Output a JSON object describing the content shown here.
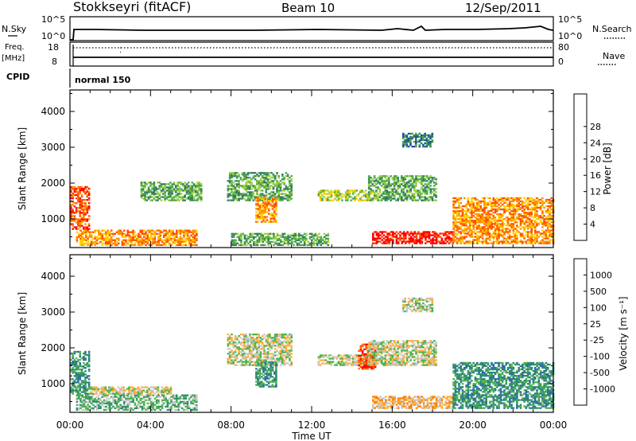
{
  "header": {
    "station": "Stokkseyri (fitACF)",
    "beam": "Beam 10",
    "date": "12/Sep/2011"
  },
  "strip_panels": {
    "nsky_label": "N.Sky",
    "nsearch_label": "N.Search",
    "freq_label_1": "Freq.",
    "freq_label_2": "[MHz]",
    "nave_label": "Nave",
    "cpid_label": "CPID",
    "left_ticks_top": [
      "10^5",
      "10^0"
    ],
    "right_ticks_top": [
      "10^5",
      "10^0"
    ],
    "left_ticks_freq": [
      "18",
      "8"
    ],
    "right_ticks_nave": [
      "80",
      "0"
    ],
    "cpid_text": "normal 150"
  },
  "colors": {
    "frame": "#000000",
    "ground_scatter": "#c8c8c8"
  },
  "chart_data": [
    {
      "type": "heatmap",
      "name": "power",
      "ylabel": "Slant Range [km]",
      "xlabel": "Time UT",
      "x_ticks": [
        "00:00",
        "04:00",
        "08:00",
        "12:00",
        "16:00",
        "20:00",
        "00:00"
      ],
      "y_ticks": [
        "1000",
        "2000",
        "3000",
        "4000"
      ],
      "ylim": [
        200,
        4600
      ],
      "xlim_hours": [
        0,
        24
      ],
      "colorbar_label": "Power [dB]",
      "colorbar_ticks": [
        "4",
        "8",
        "12",
        "16",
        "20",
        "24",
        "28"
      ],
      "colorbar_colors": [
        "#0000ff",
        "#1f4fa8",
        "#2f7f5f",
        "#4fa84f",
        "#9fcf3f",
        "#ffd000",
        "#ff9000",
        "#ff5000",
        "#ff0000"
      ],
      "regions": [
        {
          "t0": 0.0,
          "t1": 0.9,
          "r0": 700,
          "r1": 1900,
          "level": 7
        },
        {
          "t0": 0.3,
          "t1": 6.3,
          "r0": 250,
          "r1": 700,
          "level": 6
        },
        {
          "t0": 3.5,
          "t1": 6.5,
          "r0": 1500,
          "r1": 2000,
          "level": 3
        },
        {
          "t0": 7.8,
          "t1": 11.0,
          "r0": 1500,
          "r1": 2300,
          "level": 3
        },
        {
          "t0": 9.2,
          "t1": 10.2,
          "r0": 900,
          "r1": 1600,
          "level": 6
        },
        {
          "t0": 8.0,
          "t1": 12.8,
          "r0": 250,
          "r1": 600,
          "level": 3
        },
        {
          "t0": 12.3,
          "t1": 15.0,
          "r0": 1500,
          "r1": 1800,
          "level": 4
        },
        {
          "t0": 15.0,
          "t1": 19.0,
          "r0": 300,
          "r1": 650,
          "level": 8
        },
        {
          "t0": 19.0,
          "t1": 24.0,
          "r0": 300,
          "r1": 1600,
          "level": 6
        },
        {
          "t0": 16.5,
          "t1": 18.0,
          "r0": 3000,
          "r1": 3400,
          "level": 2
        },
        {
          "t0": 14.8,
          "t1": 18.2,
          "r0": 1500,
          "r1": 2200,
          "level": 3
        }
      ]
    },
    {
      "type": "heatmap",
      "name": "velocity",
      "ylabel": "Slant Range [km]",
      "xlabel": "Time UT",
      "x_ticks": [
        "00:00",
        "04:00",
        "08:00",
        "12:00",
        "16:00",
        "20:00",
        "00:00"
      ],
      "y_ticks": [
        "1000",
        "2000",
        "3000",
        "4000"
      ],
      "ylim": [
        200,
        4600
      ],
      "xlim_hours": [
        0,
        24
      ],
      "colorbar_label": "Velocity [m s⁻¹]",
      "colorbar_ticks": [
        "1000",
        "500",
        "100",
        "25",
        "-25",
        "-100",
        "-500",
        "-1000"
      ],
      "colorbar_colors": [
        "#2040a0",
        "#2f6fa0",
        "#2f8f6f",
        "#4fb34f",
        "#c8c8c8",
        "#ffb040",
        "#ff8000",
        "#ff5000",
        "#ff0000"
      ],
      "regions": [
        {
          "t0": 0.0,
          "t1": 0.9,
          "r0": 700,
          "r1": 1900,
          "level": 2
        },
        {
          "t0": 0.3,
          "t1": 6.3,
          "r0": 250,
          "r1": 700,
          "level": 3
        },
        {
          "t0": 1.0,
          "t1": 5.0,
          "r0": 700,
          "r1": 900,
          "level": 4
        },
        {
          "t0": 7.8,
          "t1": 11.0,
          "r0": 1500,
          "r1": 2400,
          "level": 4
        },
        {
          "t0": 9.2,
          "t1": 10.2,
          "r0": 900,
          "r1": 1600,
          "level": 2
        },
        {
          "t0": 12.3,
          "t1": 15.0,
          "r0": 1500,
          "r1": 1800,
          "level": 4
        },
        {
          "t0": 14.3,
          "t1": 15.2,
          "r0": 1400,
          "r1": 2100,
          "level": 7
        },
        {
          "t0": 15.0,
          "t1": 19.0,
          "r0": 300,
          "r1": 650,
          "level": 5
        },
        {
          "t0": 19.0,
          "t1": 24.0,
          "r0": 300,
          "r1": 1600,
          "level": 2
        },
        {
          "t0": 16.5,
          "t1": 18.0,
          "r0": 3000,
          "r1": 3400,
          "level": 4
        },
        {
          "t0": 14.8,
          "t1": 18.2,
          "r0": 1500,
          "r1": 2200,
          "level": 4
        }
      ]
    }
  ]
}
